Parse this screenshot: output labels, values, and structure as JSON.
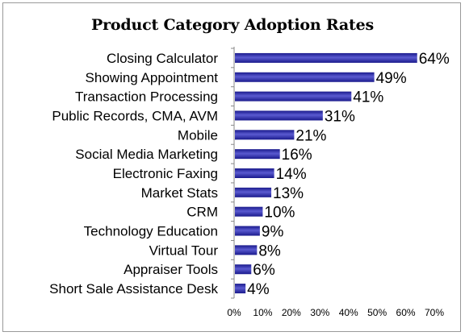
{
  "chart_data": {
    "type": "bar",
    "orientation": "horizontal",
    "title": "Product Category Adoption Rates",
    "categories": [
      "Closing Calculator",
      "Showing Appointment",
      "Transaction Processing",
      "Public Records, CMA, AVM",
      "Mobile",
      "Social Media Marketing",
      "Electronic Faxing",
      "Market Stats",
      "CRM",
      "Technology Education",
      "Virtual Tour",
      "Appraiser Tools",
      "Short Sale Assistance Desk"
    ],
    "values": [
      64,
      49,
      41,
      31,
      21,
      16,
      14,
      13,
      10,
      9,
      8,
      6,
      4
    ],
    "data_labels": [
      "64%",
      "49%",
      "41%",
      "31%",
      "21%",
      "16%",
      "14%",
      "13%",
      "10%",
      "9%",
      "8%",
      "6%",
      "4%"
    ],
    "x_ticks": [
      "0%",
      "10%",
      "20%",
      "30%",
      "40%",
      "50%",
      "60%",
      "70%"
    ],
    "xlim": [
      0,
      70
    ],
    "xlabel": "",
    "ylabel": "",
    "grid": false,
    "legend": "none",
    "bar_color": "#1a1a8c",
    "bar_highlight_color": "#5a5ad0"
  }
}
